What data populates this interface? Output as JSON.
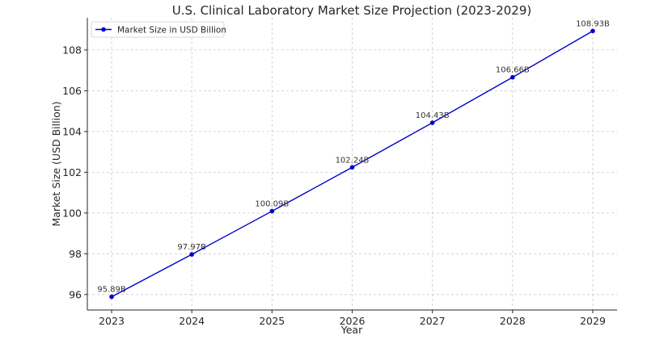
{
  "chart_data": {
    "type": "line",
    "title": "U.S. Clinical Laboratory Market Size Projection (2023-2029)",
    "xlabel": "Year",
    "ylabel": "Market Size (USD Billion)",
    "x": [
      "2023",
      "2024",
      "2025",
      "2026",
      "2027",
      "2028",
      "2029"
    ],
    "series": [
      {
        "name": "Market Size in USD Billion",
        "values": [
          95.89,
          97.97,
          100.09,
          102.24,
          104.43,
          106.66,
          108.93
        ],
        "labels": [
          "95.89B",
          "97.97B",
          "100.09B",
          "102.24B",
          "104.43B",
          "106.66B",
          "108.93B"
        ],
        "color": "#0000cc"
      }
    ],
    "yticks": [
      96,
      98,
      100,
      102,
      104,
      106,
      108
    ],
    "ylim": [
      95.24,
      109.58
    ],
    "grid": true,
    "legend_position": "top-left"
  }
}
